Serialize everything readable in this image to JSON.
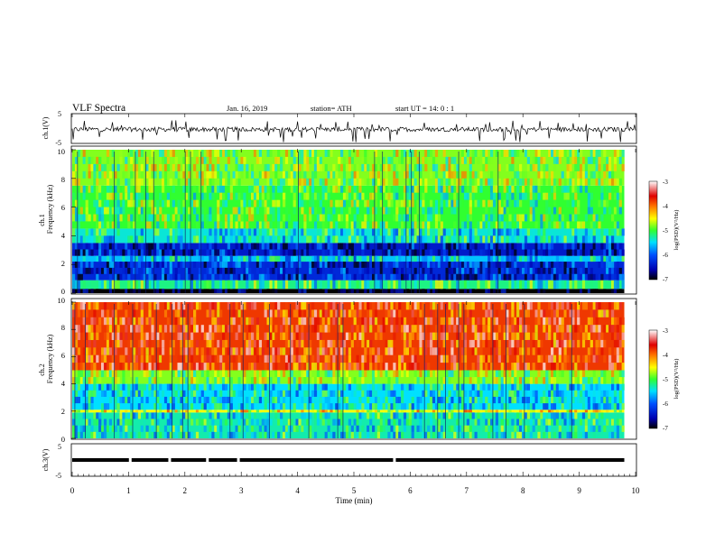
{
  "header": {
    "title": "VLF  Spectra",
    "date": "Jan. 16, 2019",
    "station": "station= ATH",
    "start": "start  UT  =   14: 0  : 1"
  },
  "chart_data": [
    {
      "type": "line",
      "ylabel": "ch.1(V)",
      "ylim": [
        -5,
        5
      ],
      "y_ticks": [
        "5",
        "-5"
      ],
      "x_range": [
        0,
        10
      ],
      "trace": "noisy waveform centred near -0.3 V with spikes to about -5 V and +3 V"
    },
    {
      "type": "heatmap",
      "ylabel_top": "ch.1",
      "ylabel": "Frequency  (kHz)",
      "ylim": [
        0,
        10
      ],
      "y_ticks": [
        "0",
        "2",
        "4",
        "6",
        "8",
        "10"
      ],
      "x_range": [
        0,
        9.8
      ],
      "colorbar": {
        "label": "log(PSD)(V²/Hz)",
        "range": [
          -7,
          -3
        ],
        "ticks": [
          "-3",
          "-4",
          "-5",
          "-6",
          "-7"
        ]
      },
      "bands": [
        {
          "freq_khz": [
            0,
            0.3
          ],
          "log_psd": -7
        },
        {
          "freq_khz": [
            0.3,
            0.9
          ],
          "log_psd": -5.2
        },
        {
          "freq_khz": [
            0.9,
            2.2
          ],
          "log_psd": -6.3
        },
        {
          "freq_khz": [
            2.2,
            2.6
          ],
          "log_psd": -5.6
        },
        {
          "freq_khz": [
            2.6,
            3.5
          ],
          "log_psd": -6.4
        },
        {
          "freq_khz": [
            3.5,
            4.5
          ],
          "log_psd": -5.4
        },
        {
          "freq_khz": [
            4.5,
            7.5
          ],
          "log_psd": -5.0
        },
        {
          "freq_khz": [
            7.5,
            10
          ],
          "log_psd": -4.8
        }
      ]
    },
    {
      "type": "heatmap",
      "ylabel_top": "ch.2",
      "ylabel": "Frequency  (kHz)",
      "ylim": [
        0,
        10
      ],
      "y_ticks": [
        "0",
        "2",
        "4",
        "6",
        "8",
        "10"
      ],
      "x_range": [
        0,
        9.8
      ],
      "colorbar": {
        "label": "log(PSD)(V²/Hz)",
        "range": [
          -7,
          -3
        ],
        "ticks": [
          "-3",
          "-4",
          "-5",
          "-6",
          "-7"
        ]
      },
      "bands": [
        {
          "freq_khz": [
            0,
            1.9
          ],
          "log_psd": -5.3
        },
        {
          "freq_khz": [
            1.9,
            2.1
          ],
          "log_psd": -4.5
        },
        {
          "freq_khz": [
            2.1,
            4.0
          ],
          "log_psd": -5.5
        },
        {
          "freq_khz": [
            4.0,
            5.0
          ],
          "log_psd": -4.8
        },
        {
          "freq_khz": [
            5.0,
            10
          ],
          "log_psd": -3.8
        }
      ]
    },
    {
      "type": "line",
      "ylabel": "ch.3(V)",
      "ylim": [
        -5,
        5
      ],
      "y_ticks": [
        "5",
        "-5"
      ],
      "xlabel": "Time  (min)",
      "x_ticks": [
        "0",
        "1",
        "2",
        "3",
        "4",
        "5",
        "6",
        "7",
        "8",
        "9",
        "10"
      ],
      "xlim": [
        0,
        10
      ],
      "level_v": 0,
      "gaps_min": [
        1.03,
        1.73,
        2.4,
        2.95,
        5.72
      ]
    }
  ]
}
